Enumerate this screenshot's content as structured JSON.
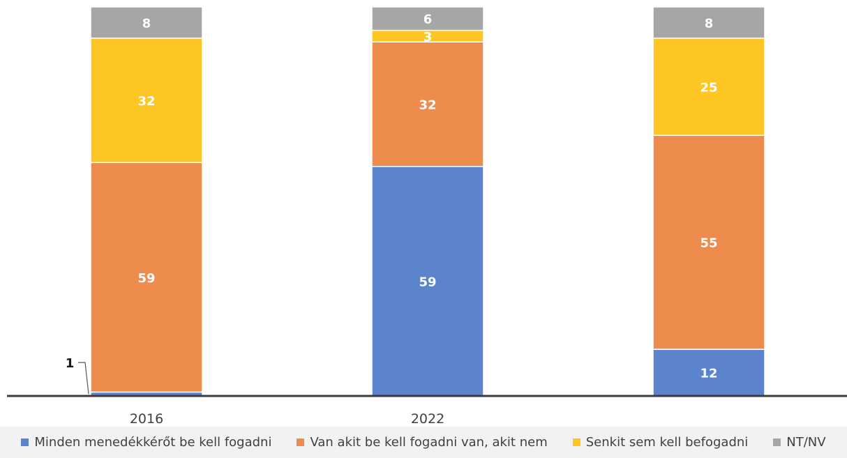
{
  "chart_data": {
    "type": "bar",
    "stacked": true,
    "categories": [
      "2016",
      "2022",
      ""
    ],
    "series": [
      {
        "name": "Minden menedékkérőt be kell fogadni",
        "color": "#5b84cc",
        "values": [
          1,
          59,
          12
        ]
      },
      {
        "name": "Van akit be kell fogadni van, akit nem",
        "color": "#ee8c4e",
        "values": [
          59,
          32,
          55
        ]
      },
      {
        "name": "Senkit sem kell befogadni",
        "color": "#fdc623",
        "values": [
          32,
          3,
          25
        ]
      },
      {
        "name": "NT/NV",
        "color": "#a6a6a6",
        "values": [
          8,
          6,
          8
        ]
      }
    ],
    "data_labels": [
      [
        "1",
        "59",
        "12"
      ],
      [
        "59",
        "32",
        "55"
      ],
      [
        "32",
        "3",
        "25"
      ],
      [
        "8",
        "6",
        "8"
      ]
    ],
    "ylim": [
      0,
      100
    ],
    "grid": false,
    "legend_position": "bottom",
    "title": "",
    "xlabel": "",
    "ylabel": ""
  }
}
